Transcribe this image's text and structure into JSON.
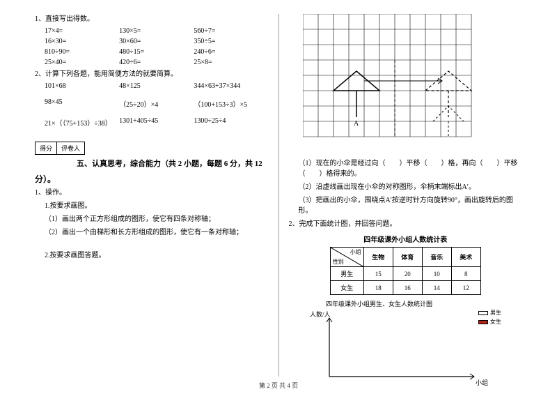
{
  "left": {
    "q1_title": "1、直接写出得数。",
    "rows1": [
      [
        "17×4=",
        "130×5=",
        "560÷7="
      ],
      [
        "16×30=",
        "30×60=",
        "350÷5="
      ],
      [
        "810÷90=",
        "480÷15=",
        "240÷6="
      ],
      [
        "25×40=",
        "420÷6=",
        "25×8="
      ]
    ],
    "q2_title": "2、计算下列各题，能用简便方法的就要简算。",
    "rows2": [
      [
        "101×68",
        "48×125",
        "344×63+37×344"
      ],
      [
        "98×45",
        "（25÷20）×4",
        "（100+153÷3）×5"
      ],
      [
        "21×（（75+153）÷38）",
        "1301+405÷45",
        "1300÷25÷4"
      ]
    ],
    "score_l": "得分",
    "score_r": "评卷人",
    "section5": "五、认真思考，综合能力（共 2 小题，每题 6 分，共 12",
    "fen": "分）。",
    "op1": "1、操作。",
    "op1_1": "1.按要求画图。",
    "op1_1a": "（1）画出两个正方形组成的图形，使它有四条对称轴；",
    "op1_1b": "（2）画出一个由梯形和长方形组成的图形，使它有一条对称轴；",
    "op1_2": "2.按要求画图答题。"
  },
  "right": {
    "grid": {
      "cols": 11,
      "rows": 8,
      "cell": 22
    },
    "umbrella_label": "A",
    "t1": "（1）现在的小伞是经过向（　　）平移（　　）格，再向（　　）平移（　　）格得来的。",
    "t2": "（2）沿虚线画出现在小伞的对称图形，伞柄末端标出A′。",
    "t3": "（3）把画出的小伞，围绕点A′按逆时针方向旋转90°，画出旋转后的图形。",
    "q2": "2、完成下面统计图，并回答问题。",
    "table_title": "四年级课外小组人数统计表",
    "table": {
      "diag_top": "小组",
      "diag_bot": "性别",
      "cols": [
        "生物",
        "体育",
        "音乐",
        "美术"
      ],
      "rows": [
        {
          "label": "男生",
          "vals": [
            "15",
            "20",
            "10",
            "8"
          ]
        },
        {
          "label": "女生",
          "vals": [
            "18",
            "16",
            "14",
            "12"
          ]
        }
      ]
    },
    "chart_title": "四年级课外小组男生、女生人数统计图",
    "y_label": "人数/人",
    "x_label": "小组",
    "legend": {
      "a": "男生",
      "b": "女生"
    }
  },
  "footer": "第 2 页 共 4 页"
}
